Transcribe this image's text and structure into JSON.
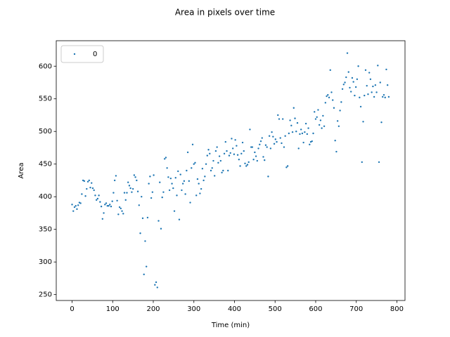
{
  "chart_data": {
    "type": "scatter",
    "title": "Area in pixels over time",
    "x_label": "Time (min)",
    "y_label": "Area",
    "xlim": [
      -39,
      820
    ],
    "ylim": [
      241,
      639
    ],
    "xticks": [
      0,
      100,
      200,
      300,
      400,
      500,
      600,
      700,
      800
    ],
    "yticks": [
      250,
      300,
      350,
      400,
      450,
      500,
      550,
      600
    ],
    "legend": "upper left",
    "series": [
      {
        "name": "0",
        "color": "#1f77b4",
        "x": [
          0,
          3,
          6,
          9,
          12,
          15,
          18,
          21,
          24,
          27,
          30,
          33,
          36,
          39,
          42,
          45,
          48,
          51,
          54,
          57,
          60,
          63,
          66,
          69,
          72,
          75,
          78,
          81,
          84,
          87,
          90,
          93,
          96,
          99,
          102,
          105,
          108,
          111,
          114,
          117,
          120,
          123,
          126,
          129,
          132,
          135,
          138,
          141,
          144,
          147,
          150,
          153,
          156,
          159,
          162,
          165,
          168,
          171,
          174,
          177,
          180,
          183,
          186,
          189,
          192,
          195,
          198,
          201,
          204,
          207,
          210,
          213,
          216,
          219,
          222,
          225,
          228,
          231,
          234,
          237,
          240,
          243,
          246,
          249,
          252,
          255,
          258,
          261,
          264,
          267,
          270,
          273,
          276,
          279,
          282,
          285,
          288,
          291,
          294,
          297,
          300,
          303,
          306,
          309,
          312,
          315,
          318,
          321,
          324,
          327,
          330,
          333,
          336,
          339,
          342,
          345,
          348,
          351,
          354,
          357,
          360,
          363,
          366,
          369,
          372,
          375,
          378,
          381,
          384,
          387,
          390,
          393,
          396,
          399,
          402,
          405,
          408,
          411,
          414,
          417,
          420,
          423,
          426,
          429,
          432,
          435,
          438,
          441,
          444,
          447,
          450,
          453,
          456,
          459,
          462,
          465,
          468,
          471,
          474,
          477,
          480,
          483,
          486,
          489,
          492,
          495,
          498,
          501,
          504,
          507,
          510,
          513,
          516,
          519,
          522,
          525,
          528,
          531,
          534,
          537,
          540,
          543,
          546,
          549,
          552,
          555,
          558,
          561,
          564,
          567,
          570,
          573,
          576,
          579,
          582,
          585,
          588,
          591,
          594,
          597,
          600,
          603,
          606,
          609,
          612,
          615,
          618,
          621,
          624,
          627,
          630,
          633,
          636,
          639,
          642,
          645,
          648,
          651,
          654,
          657,
          660,
          663,
          666,
          669,
          672,
          675,
          678,
          681,
          684,
          687,
          690,
          693,
          696,
          699,
          702,
          705,
          708,
          711,
          714,
          717,
          720,
          723,
          726,
          729,
          732,
          735,
          738,
          741,
          744,
          747,
          750,
          753,
          756,
          759,
          762,
          765,
          768,
          771,
          774,
          777,
          780
        ],
        "values": [
          388,
          378,
          384,
          386,
          381,
          387,
          391,
          390,
          404,
          425,
          424,
          401,
          412,
          423,
          425,
          414,
          421,
          413,
          410,
          402,
          395,
          397,
          402,
          392,
          385,
          366,
          375,
          388,
          390,
          386,
          386,
          388,
          385,
          393,
          406,
          425,
          432,
          394,
          373,
          384,
          382,
          378,
          374,
          406,
          395,
          406,
          422,
          417,
          413,
          407,
          412,
          433,
          430,
          425,
          408,
          387,
          344,
          400,
          367,
          281,
          332,
          293,
          368,
          420,
          431,
          398,
          407,
          433,
          265,
          269,
          261,
          363,
          422,
          351,
          399,
          407,
          458,
          460,
          444,
          430,
          410,
          428,
          420,
          413,
          378,
          429,
          402,
          439,
          365,
          434,
          410,
          420,
          424,
          404,
          440,
          468,
          424,
          391,
          444,
          480,
          450,
          452,
          402,
          427,
          420,
          405,
          412,
          443,
          425,
          431,
          450,
          463,
          472,
          466,
          440,
          444,
          455,
          432,
          470,
          476,
          452,
          462,
          455,
          437,
          440,
          466,
          484,
          470,
          440,
          463,
          467,
          489,
          474,
          465,
          487,
          478,
          464,
          457,
          447,
          466,
          483,
          470,
          451,
          447,
          449,
          453,
          503,
          476,
          476,
          457,
          468,
          462,
          455,
          474,
          480,
          485,
          490,
          461,
          456,
          479,
          476,
          431,
          493,
          474,
          499,
          492,
          481,
          488,
          484,
          525,
          519,
          490,
          482,
          519,
          476,
          493,
          445,
          447,
          497,
          517,
          509,
          499,
          536,
          520,
          500,
          513,
          474,
          496,
          503,
          497,
          483,
          499,
          512,
          496,
          505,
          480,
          484,
          485,
          497,
          530,
          519,
          522,
          533,
          510,
          517,
          505,
          524,
          508,
          544,
          554,
          556,
          552,
          594,
          560,
          548,
          536,
          486,
          469,
          516,
          508,
          532,
          545,
          565,
          572,
          575,
          583,
          620,
          591,
          567,
          561,
          582,
          576,
          555,
          568,
          580,
          600,
          552,
          538,
          453,
          515,
          555,
          594,
          570,
          557,
          590,
          580,
          560,
          569,
          553,
          571,
          560,
          601,
          453,
          575,
          514,
          553,
          556,
          552,
          595,
          571,
          553
        ]
      }
    ]
  }
}
